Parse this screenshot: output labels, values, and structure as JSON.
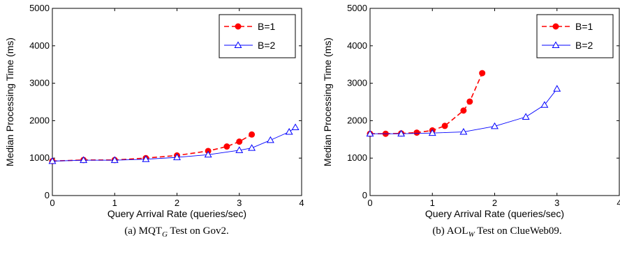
{
  "chart_data": [
    {
      "type": "line",
      "caption": {
        "prefix": "(a) MQT",
        "sub": "G",
        "suffix": " Test on Gov2."
      },
      "xlabel": "Query Arrival Rate (queries/sec)",
      "ylabel": "Median Processing Time (ms)",
      "xlim": [
        0,
        4
      ],
      "ylim": [
        0,
        5000
      ],
      "xticks": [
        0,
        1,
        2,
        3,
        4
      ],
      "yticks": [
        0,
        1000,
        2000,
        3000,
        4000,
        5000
      ],
      "grid": false,
      "legend_position": "top-right",
      "series": [
        {
          "name": "B=1",
          "color": "#ff0000",
          "dash": "dashed",
          "marker": "circle",
          "x": [
            0,
            0.5,
            1,
            1.5,
            2,
            2.5,
            2.8,
            3,
            3.2
          ],
          "y": [
            920,
            950,
            950,
            1000,
            1070,
            1190,
            1310,
            1440,
            1630
          ]
        },
        {
          "name": "B=2",
          "color": "#0000ff",
          "dash": "solid",
          "marker": "triangle",
          "x": [
            0,
            0.5,
            1,
            1.5,
            2,
            2.5,
            3,
            3.2,
            3.5,
            3.8,
            3.9
          ],
          "y": [
            920,
            945,
            945,
            970,
            1020,
            1090,
            1210,
            1270,
            1480,
            1700,
            1820
          ]
        }
      ]
    },
    {
      "type": "line",
      "caption": {
        "prefix": "(b) AOL",
        "sub": "W",
        "suffix": " Test on ClueWeb09."
      },
      "xlabel": "Query Arrival Rate (queries/sec)",
      "ylabel": "Median Processing Time (ms)",
      "xlim": [
        0,
        4
      ],
      "ylim": [
        0,
        5000
      ],
      "xticks": [
        0,
        1,
        2,
        3,
        4
      ],
      "yticks": [
        0,
        1000,
        2000,
        3000,
        4000,
        5000
      ],
      "grid": false,
      "legend_position": "top-right",
      "series": [
        {
          "name": "B=1",
          "color": "#ff0000",
          "dash": "dashed",
          "marker": "circle",
          "x": [
            0,
            0.25,
            0.5,
            0.75,
            1,
            1.2,
            1.5,
            1.6,
            1.8
          ],
          "y": [
            1650,
            1650,
            1660,
            1680,
            1740,
            1860,
            2270,
            2510,
            3270
          ]
        },
        {
          "name": "B=2",
          "color": "#0000ff",
          "dash": "solid",
          "marker": "triangle",
          "x": [
            0,
            0.5,
            1,
            1.5,
            2,
            2.5,
            2.8,
            3
          ],
          "y": [
            1650,
            1650,
            1670,
            1700,
            1850,
            2100,
            2420,
            2850
          ]
        }
      ]
    }
  ]
}
